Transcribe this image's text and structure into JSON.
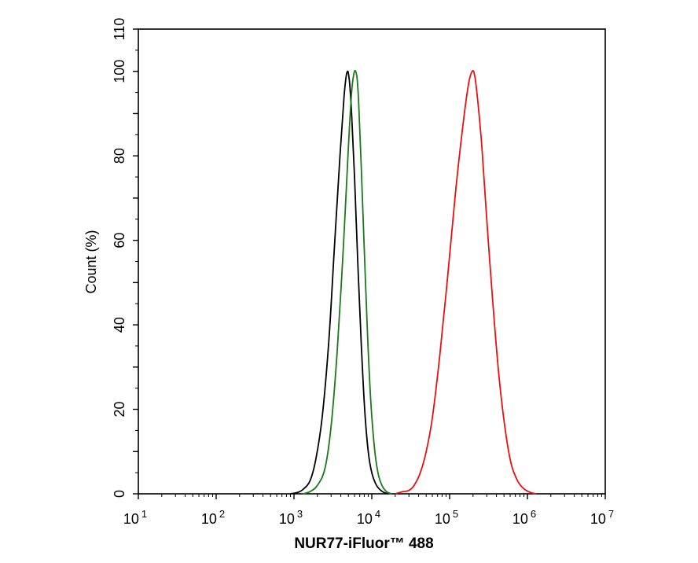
{
  "chart_data": {
    "type": "line",
    "title": "",
    "xlabel": "NUR77-iFluor™ 488",
    "ylabel": "Count  (%)",
    "x_scale": "log",
    "xlim": [
      10,
      10000000
    ],
    "ylim": [
      0,
      110
    ],
    "x_ticks": [
      {
        "base": "10",
        "exp": "1"
      },
      {
        "base": "10",
        "exp": "2"
      },
      {
        "base": "10",
        "exp": "3"
      },
      {
        "base": "10",
        "exp": "4"
      },
      {
        "base": "10",
        "exp": "5"
      },
      {
        "base": "10",
        "exp": "6"
      },
      {
        "base": "10",
        "exp": "7"
      }
    ],
    "y_ticks": [
      "0",
      "20",
      "40",
      "60",
      "80",
      "100",
      "110"
    ],
    "grid": false,
    "legend": "none",
    "series": [
      {
        "color": "#000000",
        "x": [
          900,
          1100,
          1300,
          1600,
          1900,
          2300,
          2800,
          3300,
          3900,
          4400,
          4700,
          4900,
          5000,
          5200,
          5500,
          6000,
          6600,
          7300,
          8100,
          9000,
          10000,
          11500,
          13500,
          16000
        ],
        "y": [
          0,
          0.3,
          1,
          3,
          8,
          18,
          36,
          58,
          80,
          94,
          99,
          100,
          99.5,
          97,
          90,
          75,
          55,
          36,
          20,
          10,
          5,
          2,
          0.6,
          0
        ]
      },
      {
        "color": "#1a7a1a",
        "x": [
          1300,
          1600,
          2000,
          2500,
          3000,
          3600,
          4300,
          5000,
          5500,
          5900,
          6200,
          6500,
          6800,
          7300,
          8000,
          8800,
          9700,
          10800,
          12000,
          13500,
          15500,
          18000
        ],
        "y": [
          0,
          0.5,
          2,
          6,
          16,
          34,
          58,
          82,
          95,
          99.5,
          100,
          98,
          92,
          78,
          58,
          38,
          22,
          11,
          5,
          2,
          0.5,
          0
        ]
      },
      {
        "color": "#e81010",
        "x": [
          20000,
          25000,
          30000,
          35000,
          42000,
          50000,
          60000,
          75000,
          95000,
          120000,
          150000,
          175000,
          195000,
          210000,
          230000,
          260000,
          300000,
          360000,
          430000,
          520000,
          620000,
          750000,
          900000,
          1100000,
          1300000
        ],
        "y": [
          0,
          0.5,
          0.8,
          2,
          5,
          10,
          18,
          33,
          52,
          72,
          88,
          97,
          100,
          99,
          93,
          82,
          65,
          45,
          28,
          15,
          7,
          3,
          1.2,
          0.3,
          0
        ]
      }
    ]
  }
}
